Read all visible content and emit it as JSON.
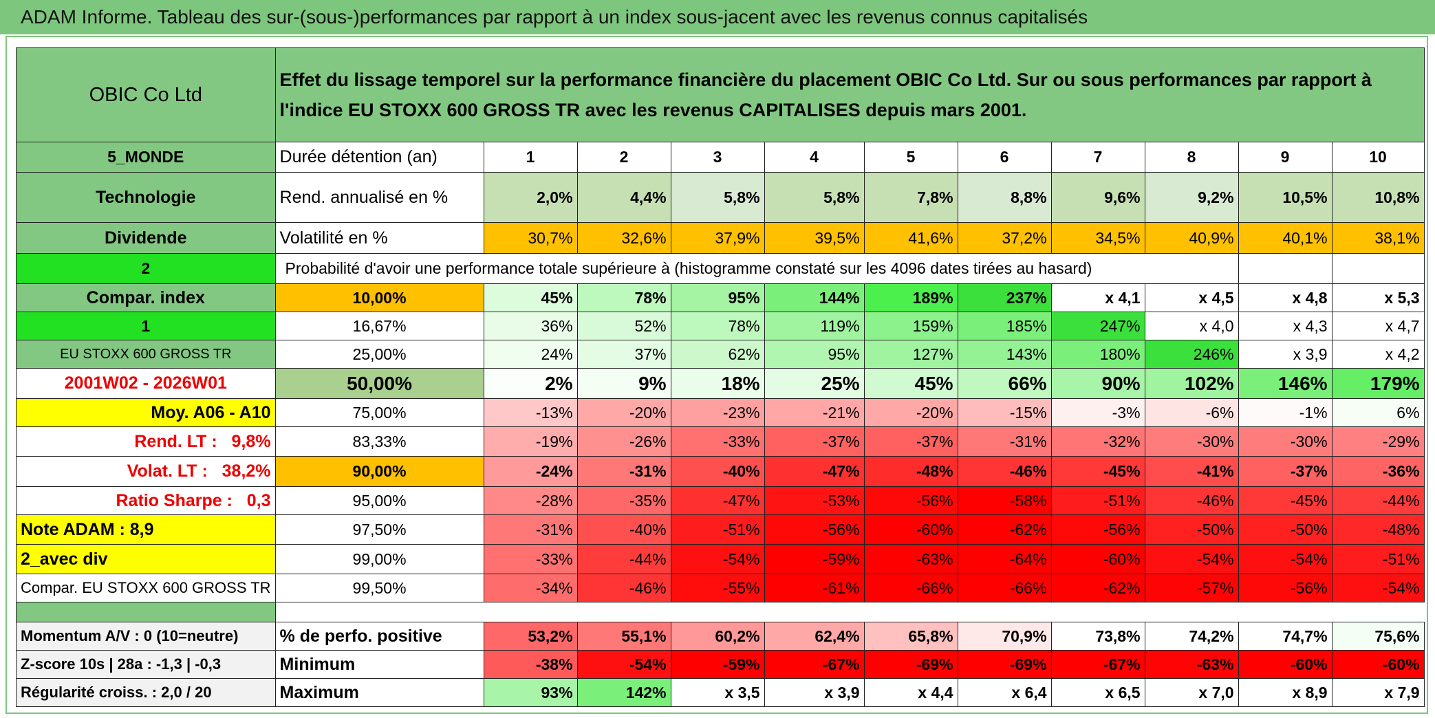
{
  "header": {
    "title": "ADAM Informe. Tableau des sur-(sous-)performances par rapport à un index sous-jacent avec les revenus connus capitalisés"
  },
  "table": {
    "company": "OBIC Co Ltd",
    "description": "Effet du lissage temporel sur la performance financière du placement OBIC Co Ltd. Sur ou sous performances par rapport à l'indice EU STOXX 600 GROSS TR avec les revenus CAPITALISES depuis mars 2001.",
    "holding_row": {
      "label": "5_MONDE",
      "name": "Durée détention (an)",
      "values": [
        1,
        2,
        3,
        4,
        5,
        6,
        7,
        8,
        9,
        10
      ]
    },
    "rows": [
      {
        "label": "Technologie",
        "name": "Rend. annualisé en %",
        "values": [
          "2,0%",
          "4,4%",
          "5,8%",
          "5,8%",
          "7,8%",
          "8,8%",
          "9,6%",
          "9,2%",
          "10,5%",
          "10,8%"
        ]
      },
      {
        "label": "Dividende",
        "name": "Volatilité en %",
        "values": [
          "30,7%",
          "32,6%",
          "37,9%",
          "39,5%",
          "41,6%",
          "37,2%",
          "34,5%",
          "40,9%",
          "40,1%",
          "38,1%"
        ]
      },
      {
        "label": "2",
        "text": "Probabilité d'avoir une performance totale supérieure à (histogramme constaté sur les 4096 dates tirées au hasard)"
      },
      {
        "label": "Compar. index",
        "name": "10,00%",
        "values": [
          "45%",
          "78%",
          "95%",
          "144%",
          "189%",
          "237%",
          "x 4,1",
          "x 4,5",
          "x 4,8",
          "x 5,3"
        ]
      },
      {
        "label": "1",
        "name": "16,67%",
        "values": [
          "36%",
          "52%",
          "78%",
          "119%",
          "159%",
          "185%",
          "247%",
          "x 4,0",
          "x 4,3",
          "x 4,7"
        ]
      },
      {
        "label": "EU STOXX 600 GROSS TR",
        "name": "25,00%",
        "values": [
          "24%",
          "37%",
          "62%",
          "95%",
          "127%",
          "143%",
          "180%",
          "246%",
          "x 3,9",
          "x 4,2"
        ]
      },
      {
        "label": "2001W02 - 2026W01",
        "name": "50,00%",
        "values": [
          "2%",
          "9%",
          "18%",
          "25%",
          "45%",
          "66%",
          "90%",
          "102%",
          "146%",
          "179%"
        ]
      },
      {
        "label": "Moy. A06 - A10",
        "name": "75,00%",
        "values": [
          "-13%",
          "-20%",
          "-23%",
          "-21%",
          "-20%",
          "-15%",
          "-3%",
          "-6%",
          "-1%",
          "6%"
        ]
      },
      {
        "label": "Rend. LT :   9,8%",
        "name": "83,33%",
        "values": [
          "-19%",
          "-26%",
          "-33%",
          "-37%",
          "-37%",
          "-31%",
          "-32%",
          "-30%",
          "-30%",
          "-29%"
        ]
      },
      {
        "label": "Volat. LT :   38,2%",
        "name": "90,00%",
        "values": [
          "-24%",
          "-31%",
          "-40%",
          "-47%",
          "-48%",
          "-46%",
          "-45%",
          "-41%",
          "-37%",
          "-36%"
        ]
      },
      {
        "label": "Ratio Sharpe :   0,3",
        "name": "95,00%",
        "values": [
          "-28%",
          "-35%",
          "-47%",
          "-53%",
          "-56%",
          "-58%",
          "-51%",
          "-46%",
          "-45%",
          "-44%"
        ]
      },
      {
        "label": "Note ADAM : 8,9",
        "name": "97,50%",
        "values": [
          "-31%",
          "-40%",
          "-51%",
          "-56%",
          "-60%",
          "-62%",
          "-56%",
          "-50%",
          "-50%",
          "-48%"
        ]
      },
      {
        "label": "2_avec div",
        "name": "99,00%",
        "values": [
          "-33%",
          "-44%",
          "-54%",
          "-59%",
          "-63%",
          "-64%",
          "-60%",
          "-54%",
          "-54%",
          "-51%"
        ]
      },
      {
        "label": "Compar. EU STOXX 600 GROSS TR",
        "name": "99,50%",
        "values": [
          "-34%",
          "-46%",
          "-55%",
          "-61%",
          "-66%",
          "-66%",
          "-62%",
          "-57%",
          "-56%",
          "-54%"
        ]
      }
    ],
    "summary_rows": [
      {
        "label": "Momentum A/V : 0 (10=neutre)",
        "name": "% de perfo. positive",
        "values": [
          "53,2%",
          "55,1%",
          "60,2%",
          "62,4%",
          "65,8%",
          "70,9%",
          "73,8%",
          "74,2%",
          "74,7%",
          "75,6%"
        ]
      },
      {
        "label": "Z-score 10s | 28a : -1,3 | -0,3",
        "name": "Minimum",
        "values": [
          "-38%",
          "-54%",
          "-59%",
          "-67%",
          "-69%",
          "-69%",
          "-67%",
          "-63%",
          "-60%",
          "-60%"
        ]
      },
      {
        "label": "Régularité croiss. : 2,0 / 20",
        "name": "Maximum",
        "values": [
          "93%",
          "142%",
          "x 3,5",
          "x 3,9",
          "x 4,4",
          "x 6,4",
          "x 6,5",
          "x 7,0",
          "x 8,9",
          "x 7,9"
        ]
      }
    ]
  }
}
